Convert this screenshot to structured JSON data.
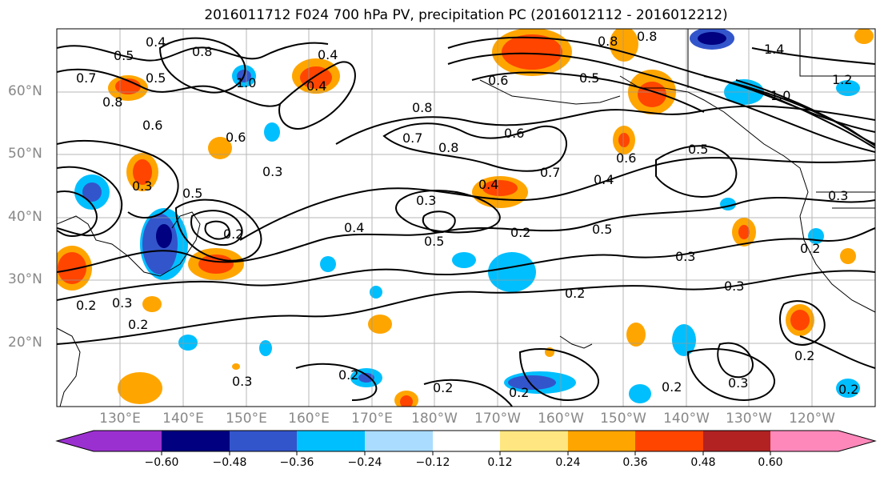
{
  "title": "2016011712 F024 700 hPa PV, precipitation PC (2016012112 - 2016012212)",
  "lat_labels": [
    "60°N",
    "50°N",
    "40°N",
    "30°N",
    "20°N"
  ],
  "lon_labels": [
    "130°E",
    "140°E",
    "150°E",
    "160°E",
    "170°E",
    "180°W",
    "170°W",
    "160°W",
    "150°W",
    "140°W",
    "130°W",
    "120°W"
  ],
  "colorbar": {
    "tick_labels": [
      "−0.60",
      "−0.48",
      "−0.36",
      "−0.24",
      "−0.12",
      "0.12",
      "0.24",
      "0.36",
      "0.48",
      "0.60"
    ],
    "colors": [
      "#9b30d0",
      "#000080",
      "#3355cc",
      "#00bfff",
      "#aadcff",
      "#ffffff",
      "#ffe680",
      "#ffa500",
      "#ff4500",
      "#b22222",
      "#ff88bb"
    ]
  },
  "contour_labels": [
    "0.4",
    "0.5",
    "0.8",
    "0.4",
    "0.7",
    "0.5",
    "1.0",
    "0.8",
    "0.6",
    "0.8",
    "0.6",
    "0.5",
    "0.4",
    "0.8",
    "0.7",
    "0.8",
    "0.8",
    "1.4",
    "1.2",
    "1.0",
    "0.6",
    "0.4",
    "0.3",
    "0.3",
    "0.6",
    "0.5",
    "0.7",
    "0.6",
    "0.5",
    "0.4",
    "0.3",
    "0.5",
    "0.2",
    "0.5",
    "0.3",
    "0.4",
    "0.3",
    "0.2",
    "0.3",
    "0.2",
    "0.2",
    "0.3",
    "0.2",
    "0.2",
    "0.2",
    "0.2",
    "0.3",
    "0.2",
    "0.2",
    "0.2",
    "0.3",
    "0.2"
  ]
}
